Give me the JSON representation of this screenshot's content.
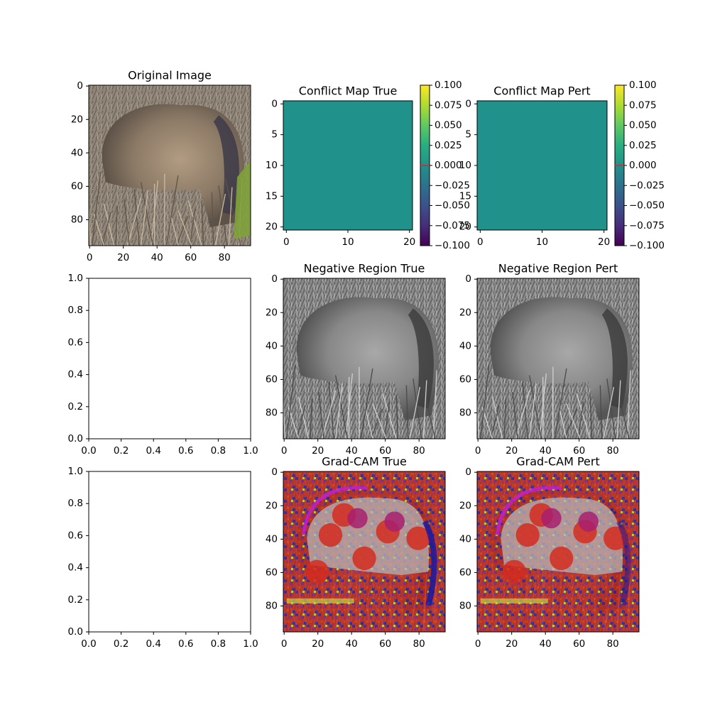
{
  "chart_data": [
    {
      "type": "image",
      "title": "Original Image",
      "content": "color photo",
      "xlim": [
        0,
        96
      ],
      "ylim": [
        96,
        0
      ],
      "xticks": [
        0,
        20,
        40,
        60,
        80
      ],
      "yticks": [
        0,
        20,
        40,
        60,
        80
      ],
      "xtick_labels": [
        "0",
        "20",
        "40",
        "60",
        "80"
      ],
      "ytick_labels": [
        "0",
        "20",
        "40",
        "60",
        "80"
      ]
    },
    {
      "type": "heatmap",
      "title": "Conflict Map True",
      "colormap": "viridis",
      "fill_value": 0.0,
      "fill_color": "#21918c",
      "xlim": [
        0,
        21
      ],
      "ylim": [
        21,
        0
      ],
      "xticks": [
        0,
        10,
        20
      ],
      "yticks": [
        0,
        5,
        10,
        15,
        20
      ],
      "xtick_labels": [
        "0",
        "10",
        "20"
      ],
      "ytick_labels": [
        "0",
        "5",
        "10",
        "15",
        "20"
      ],
      "colorbar": {
        "range": [
          -0.1,
          0.1
        ],
        "ticks": [
          0.1,
          0.075,
          0.05,
          0.025,
          0.0,
          -0.025,
          -0.05,
          -0.075,
          -0.1
        ],
        "tick_labels": [
          "0.100",
          "0.075",
          "0.050",
          "0.025",
          "0.000",
          "−0.025",
          "−0.050",
          "−0.075",
          "−0.100"
        ],
        "marker_value": 0.0,
        "marker_color": "#d62728"
      }
    },
    {
      "type": "heatmap",
      "title": "Conflict Map Pert",
      "colormap": "viridis",
      "fill_value": 0.0,
      "fill_color": "#21918c",
      "xlim": [
        0,
        21
      ],
      "ylim": [
        21,
        0
      ],
      "xticks": [
        0,
        10,
        20
      ],
      "yticks": [
        0,
        5,
        10,
        15,
        20
      ],
      "xtick_labels": [
        "0",
        "10",
        "20"
      ],
      "ytick_labels": [
        "0",
        "5",
        "10",
        "15",
        "20"
      ],
      "colorbar": {
        "range": [
          -0.1,
          0.1
        ],
        "ticks": [
          0.1,
          0.075,
          0.05,
          0.025,
          0.0,
          -0.025,
          -0.05,
          -0.075,
          -0.1
        ],
        "tick_labels": [
          "0.100",
          "0.075",
          "0.050",
          "0.025",
          "0.000",
          "−0.025",
          "−0.050",
          "−0.075",
          "−0.100"
        ],
        "marker_value": 0.0,
        "marker_color": "#d62728"
      }
    },
    {
      "type": "empty",
      "title": "",
      "xlim": [
        0,
        1
      ],
      "ylim": [
        0,
        1
      ],
      "xticks": [
        0,
        0.2,
        0.4,
        0.6,
        0.8,
        1.0
      ],
      "yticks": [
        0,
        0.2,
        0.4,
        0.6,
        0.8,
        1.0
      ],
      "xtick_labels": [
        "0.0",
        "0.2",
        "0.4",
        "0.6",
        "0.8",
        "1.0"
      ],
      "ytick_labels": [
        "0.0",
        "0.2",
        "0.4",
        "0.6",
        "0.8",
        "1.0"
      ]
    },
    {
      "type": "image",
      "title": "Negative Region True",
      "content": "grayscale photo",
      "xlim": [
        0,
        96
      ],
      "ylim": [
        96,
        0
      ],
      "xticks": [
        0,
        20,
        40,
        60,
        80
      ],
      "yticks": [
        0,
        20,
        40,
        60,
        80
      ],
      "xtick_labels": [
        "0",
        "20",
        "40",
        "60",
        "80"
      ],
      "ytick_labels": [
        "0",
        "20",
        "40",
        "60",
        "80"
      ]
    },
    {
      "type": "image",
      "title": "Negative Region Pert",
      "content": "grayscale photo",
      "xlim": [
        0,
        96
      ],
      "ylim": [
        96,
        0
      ],
      "xticks": [
        0,
        20,
        40,
        60,
        80
      ],
      "yticks": [
        0,
        20,
        40,
        60,
        80
      ],
      "xtick_labels": [
        "0",
        "20",
        "40",
        "60",
        "80"
      ],
      "ytick_labels": [
        "0",
        "20",
        "40",
        "60",
        "80"
      ]
    },
    {
      "type": "empty",
      "title": "",
      "xlim": [
        0,
        1
      ],
      "ylim": [
        0,
        1
      ],
      "xticks": [
        0,
        0.2,
        0.4,
        0.6,
        0.8,
        1.0
      ],
      "yticks": [
        0,
        0.2,
        0.4,
        0.6,
        0.8,
        1.0
      ],
      "xtick_labels": [
        "0.0",
        "0.2",
        "0.4",
        "0.6",
        "0.8",
        "1.0"
      ],
      "ytick_labels": [
        "0.0",
        "0.2",
        "0.4",
        "0.6",
        "0.8",
        "1.0"
      ]
    },
    {
      "type": "image",
      "title": "Grad-CAM True",
      "content": "grayscale photo with red/blue/magenta heatmap overlay",
      "xlim": [
        0,
        96
      ],
      "ylim": [
        96,
        0
      ],
      "xticks": [
        0,
        20,
        40,
        60,
        80
      ],
      "yticks": [
        0,
        20,
        40,
        60,
        80
      ],
      "xtick_labels": [
        "0",
        "20",
        "40",
        "60",
        "80"
      ],
      "ytick_labels": [
        "0",
        "20",
        "40",
        "60",
        "80"
      ]
    },
    {
      "type": "image",
      "title": "Grad-CAM Pert",
      "content": "grayscale photo with red/blue/magenta heatmap overlay",
      "xlim": [
        0,
        96
      ],
      "ylim": [
        96,
        0
      ],
      "xticks": [
        0,
        20,
        40,
        60,
        80
      ],
      "yticks": [
        0,
        20,
        40,
        60,
        80
      ],
      "xtick_labels": [
        "0",
        "20",
        "40",
        "60",
        "80"
      ],
      "ytick_labels": [
        "0",
        "20",
        "40",
        "60",
        "80"
      ]
    }
  ]
}
